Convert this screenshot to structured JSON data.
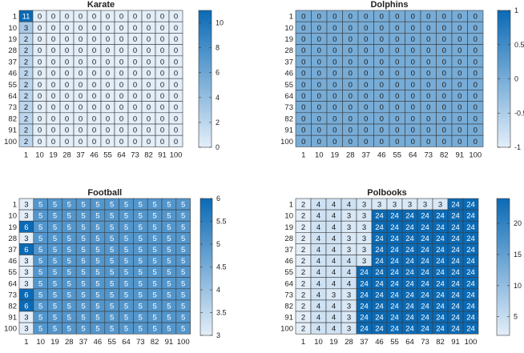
{
  "chart_data": [
    {
      "type": "heatmap",
      "title": "Karate",
      "x_labels": [
        "1",
        "10",
        "19",
        "28",
        "37",
        "46",
        "55",
        "64",
        "73",
        "82",
        "91",
        "100"
      ],
      "y_labels": [
        "1",
        "10",
        "19",
        "28",
        "37",
        "46",
        "55",
        "64",
        "73",
        "82",
        "91",
        "100"
      ],
      "values": [
        [
          11,
          0,
          0,
          0,
          0,
          0,
          0,
          0,
          0,
          0,
          0,
          0
        ],
        [
          3,
          0,
          0,
          0,
          0,
          0,
          0,
          0,
          0,
          0,
          0,
          0
        ],
        [
          2,
          0,
          0,
          0,
          0,
          0,
          0,
          0,
          0,
          0,
          0,
          0
        ],
        [
          2,
          0,
          0,
          0,
          0,
          0,
          0,
          0,
          0,
          0,
          0,
          0
        ],
        [
          2,
          0,
          0,
          0,
          0,
          0,
          0,
          0,
          0,
          0,
          0,
          0
        ],
        [
          2,
          0,
          0,
          0,
          0,
          0,
          0,
          0,
          0,
          0,
          0,
          0
        ],
        [
          2,
          0,
          0,
          0,
          0,
          0,
          0,
          0,
          0,
          0,
          0,
          0
        ],
        [
          2,
          0,
          0,
          0,
          0,
          0,
          0,
          0,
          0,
          0,
          0,
          0
        ],
        [
          2,
          0,
          0,
          0,
          0,
          0,
          0,
          0,
          0,
          0,
          0,
          0
        ],
        [
          2,
          0,
          0,
          0,
          0,
          0,
          0,
          0,
          0,
          0,
          0,
          0
        ],
        [
          2,
          0,
          0,
          0,
          0,
          0,
          0,
          0,
          0,
          0,
          0,
          0
        ],
        [
          2,
          0,
          0,
          0,
          0,
          0,
          0,
          0,
          0,
          0,
          0,
          0
        ]
      ],
      "colorbar": {
        "min": 0,
        "max": 11,
        "ticks": [
          "0",
          "2",
          "4",
          "6",
          "8",
          "10"
        ],
        "tick_values": [
          0,
          2,
          4,
          6,
          8,
          10
        ]
      },
      "colormap": {
        "low": "#e3eef9",
        "high": "#0b6ab5"
      }
    },
    {
      "type": "heatmap",
      "title": "Dolphins",
      "x_labels": [
        "1",
        "10",
        "19",
        "28",
        "37",
        "46",
        "55",
        "64",
        "73",
        "82",
        "91",
        "100"
      ],
      "y_labels": [
        "1",
        "10",
        "19",
        "28",
        "37",
        "46",
        "55",
        "64",
        "73",
        "82",
        "91",
        "100"
      ],
      "values": [
        [
          0,
          0,
          0,
          0,
          0,
          0,
          0,
          0,
          0,
          0,
          0,
          0
        ],
        [
          0,
          0,
          0,
          0,
          0,
          0,
          0,
          0,
          0,
          0,
          0,
          0
        ],
        [
          0,
          0,
          0,
          0,
          0,
          0,
          0,
          0,
          0,
          0,
          0,
          0
        ],
        [
          0,
          0,
          0,
          0,
          0,
          0,
          0,
          0,
          0,
          0,
          0,
          0
        ],
        [
          0,
          0,
          0,
          0,
          0,
          0,
          0,
          0,
          0,
          0,
          0,
          0
        ],
        [
          0,
          0,
          0,
          0,
          0,
          0,
          0,
          0,
          0,
          0,
          0,
          0
        ],
        [
          0,
          0,
          0,
          0,
          0,
          0,
          0,
          0,
          0,
          0,
          0,
          0
        ],
        [
          0,
          0,
          0,
          0,
          0,
          0,
          0,
          0,
          0,
          0,
          0,
          0
        ],
        [
          0,
          0,
          0,
          0,
          0,
          0,
          0,
          0,
          0,
          0,
          0,
          0
        ],
        [
          0,
          0,
          0,
          0,
          0,
          0,
          0,
          0,
          0,
          0,
          0,
          0
        ],
        [
          0,
          0,
          0,
          0,
          0,
          0,
          0,
          0,
          0,
          0,
          0,
          0
        ],
        [
          0,
          0,
          0,
          0,
          0,
          0,
          0,
          0,
          0,
          0,
          0,
          0
        ]
      ],
      "colorbar": {
        "min": -1,
        "max": 1,
        "ticks": [
          "1",
          "0.5",
          "0",
          "-0.5",
          "-1"
        ],
        "tick_values": [
          1,
          0.5,
          0,
          -0.5,
          -1
        ]
      },
      "colormap": {
        "low": "#e3eef9",
        "high": "#0b6ab5"
      }
    },
    {
      "type": "heatmap",
      "title": "Football",
      "x_labels": [
        "1",
        "10",
        "19",
        "28",
        "37",
        "46",
        "55",
        "64",
        "73",
        "82",
        "91",
        "100"
      ],
      "y_labels": [
        "1",
        "10",
        "19",
        "28",
        "37",
        "46",
        "55",
        "64",
        "73",
        "82",
        "91",
        "100"
      ],
      "values": [
        [
          3,
          5,
          5,
          5,
          5,
          5,
          5,
          5,
          5,
          5,
          5,
          5
        ],
        [
          3,
          5,
          5,
          5,
          5,
          5,
          5,
          5,
          5,
          5,
          5,
          5
        ],
        [
          6,
          5,
          5,
          5,
          5,
          5,
          5,
          5,
          5,
          5,
          5,
          5
        ],
        [
          3,
          5,
          5,
          5,
          5,
          5,
          5,
          5,
          5,
          5,
          5,
          5
        ],
        [
          6,
          5,
          5,
          5,
          5,
          5,
          5,
          5,
          5,
          5,
          5,
          5
        ],
        [
          3,
          5,
          5,
          5,
          5,
          5,
          5,
          5,
          5,
          5,
          5,
          5
        ],
        [
          3,
          5,
          5,
          5,
          5,
          5,
          5,
          5,
          5,
          5,
          5,
          5
        ],
        [
          3,
          5,
          5,
          5,
          5,
          5,
          5,
          5,
          5,
          5,
          5,
          5
        ],
        [
          6,
          5,
          5,
          5,
          5,
          5,
          5,
          5,
          5,
          5,
          5,
          5
        ],
        [
          6,
          5,
          5,
          5,
          5,
          5,
          5,
          5,
          5,
          5,
          5,
          5
        ],
        [
          3,
          5,
          5,
          5,
          5,
          5,
          5,
          5,
          5,
          5,
          5,
          5
        ],
        [
          3,
          5,
          5,
          5,
          5,
          5,
          5,
          5,
          5,
          5,
          5,
          5
        ]
      ],
      "colorbar": {
        "min": 3,
        "max": 6,
        "ticks": [
          "6",
          "5.5",
          "5",
          "4.5",
          "4",
          "3.5",
          "3"
        ],
        "tick_values": [
          6,
          5.5,
          5,
          4.5,
          4,
          3.5,
          3
        ]
      },
      "colormap": {
        "low": "#e3eef9",
        "high": "#0b6ab5"
      }
    },
    {
      "type": "heatmap",
      "title": "Polbooks",
      "x_labels": [
        "1",
        "10",
        "19",
        "28",
        "37",
        "46",
        "55",
        "64",
        "73",
        "82",
        "91",
        "100"
      ],
      "y_labels": [
        "1",
        "10",
        "19",
        "28",
        "37",
        "46",
        "55",
        "64",
        "73",
        "82",
        "91",
        "100"
      ],
      "values": [
        [
          2,
          4,
          4,
          4,
          3,
          3,
          3,
          3,
          3,
          3,
          24,
          24
        ],
        [
          2,
          4,
          4,
          3,
          3,
          24,
          24,
          24,
          24,
          24,
          24,
          24
        ],
        [
          2,
          4,
          4,
          3,
          3,
          24,
          24,
          24,
          24,
          24,
          24,
          24
        ],
        [
          2,
          4,
          4,
          3,
          3,
          24,
          24,
          24,
          24,
          24,
          24,
          24
        ],
        [
          2,
          4,
          4,
          3,
          3,
          24,
          24,
          24,
          24,
          24,
          24,
          24
        ],
        [
          2,
          4,
          4,
          4,
          3,
          24,
          24,
          24,
          24,
          24,
          24,
          24
        ],
        [
          2,
          4,
          4,
          4,
          24,
          24,
          24,
          24,
          24,
          24,
          24,
          24
        ],
        [
          2,
          4,
          4,
          4,
          24,
          24,
          24,
          24,
          24,
          24,
          24,
          24
        ],
        [
          2,
          4,
          3,
          3,
          24,
          24,
          24,
          24,
          24,
          24,
          24,
          24
        ],
        [
          2,
          4,
          4,
          3,
          24,
          24,
          24,
          24,
          24,
          24,
          24,
          24
        ],
        [
          2,
          4,
          4,
          3,
          24,
          24,
          24,
          24,
          24,
          24,
          24,
          24
        ],
        [
          2,
          4,
          4,
          3,
          24,
          24,
          24,
          24,
          24,
          24,
          24,
          24
        ]
      ],
      "colorbar": {
        "min": 2,
        "max": 24,
        "ticks": [
          "20",
          "15",
          "10",
          "5"
        ],
        "tick_values": [
          20,
          15,
          10,
          5
        ]
      },
      "colormap": {
        "low": "#e3eef9",
        "high": "#0b6ab5"
      }
    }
  ]
}
